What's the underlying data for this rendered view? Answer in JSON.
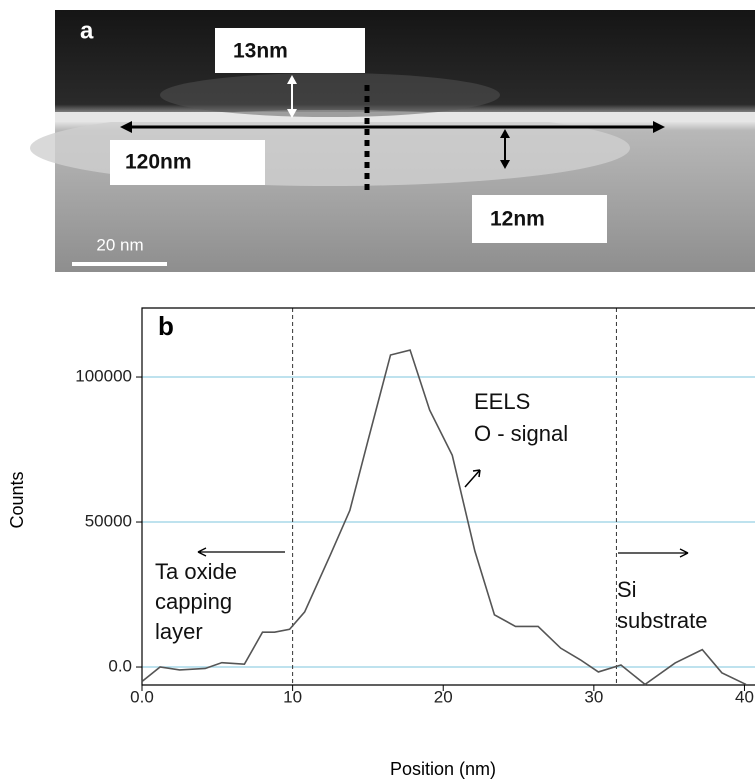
{
  "image_panel": {
    "panel_label": "a",
    "labels": [
      "13nm",
      "120nm",
      "12nm"
    ],
    "scale_bar": "20 nm"
  },
  "chart_data": {
    "type": "line",
    "panel_label": "b",
    "x_label": "Position (nm)",
    "y_label": "Counts",
    "x": [
      0,
      1.2,
      2.5,
      4.2,
      5.3,
      6.8,
      8.0,
      8.8,
      9.8,
      10.8,
      12.5,
      13.8,
      15.0,
      16.5,
      17.8,
      19.1,
      20.6,
      22.1,
      23.4,
      24.8,
      26.3,
      27.8,
      29.1,
      30.3,
      31.8,
      33.4,
      35.4,
      37.2,
      38.5,
      40.1
    ],
    "values": [
      -5000,
      0,
      -1000,
      -500,
      1500,
      1000,
      12000,
      12000,
      13000,
      19000,
      38600,
      54000,
      78000,
      107600,
      109300,
      88600,
      73000,
      40000,
      18000,
      14000,
      14000,
      6500,
      2500,
      -1700,
      700,
      -6000,
      1400,
      6000,
      -2000,
      -6000
    ],
    "color": "#555555",
    "xlim": [
      0,
      40.7
    ],
    "ylim": [
      -6200,
      123800
    ],
    "xticks": [
      {
        "value": 0,
        "label": "0.0"
      },
      10,
      20,
      30,
      40
    ],
    "yticks": [
      {
        "value": 0,
        "label": "0.0"
      },
      50000,
      100000
    ],
    "grid": true,
    "grid_color": "#a8d8e8",
    "vlines": [
      10,
      31.5
    ],
    "annotations": [
      [
        "EELS",
        "O - signal"
      ],
      [
        "Ta oxide",
        "capping",
        "layer"
      ],
      [
        "Si",
        "substrate"
      ]
    ]
  }
}
